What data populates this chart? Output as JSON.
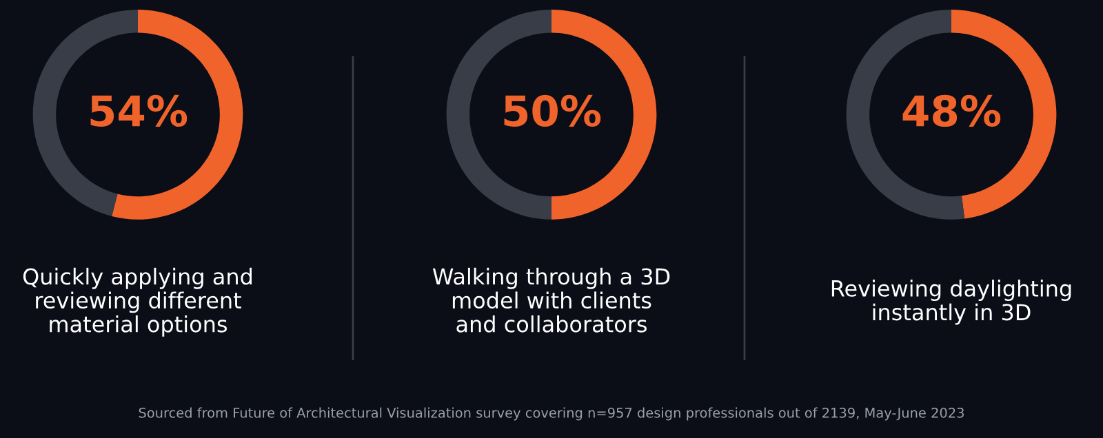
{
  "chart_data": [
    {
      "type": "donut",
      "title": "Quickly applying and\nreviewing different\nmaterial options",
      "categories": [
        null,
        null
      ],
      "values": [
        54,
        46
      ],
      "colors": [
        "#f0642c",
        "#383d48"
      ],
      "value_labels": [
        "54%",
        null
      ]
    },
    {
      "type": "donut",
      "title": "Walking through a 3D\nmodel with clients\nand collaborators",
      "categories": [
        null,
        null
      ],
      "values": [
        50,
        50
      ],
      "colors": [
        "#f0642c",
        "#383d48"
      ],
      "value_labels": [
        "50%",
        null
      ],
      "annotations": [
        "Sourced from Future of Architectural Visualization survey covering n=957 design professionals out of 2139, May-June 2023"
      ]
    },
    {
      "type": "donut",
      "title": "Reviewing daylighting\ninstantly in 3D",
      "categories": [
        null,
        null
      ],
      "values": [
        48,
        52
      ],
      "colors": [
        "#f0642c",
        "#383d48"
      ],
      "value_labels": [
        "48%",
        null
      ]
    }
  ]
}
